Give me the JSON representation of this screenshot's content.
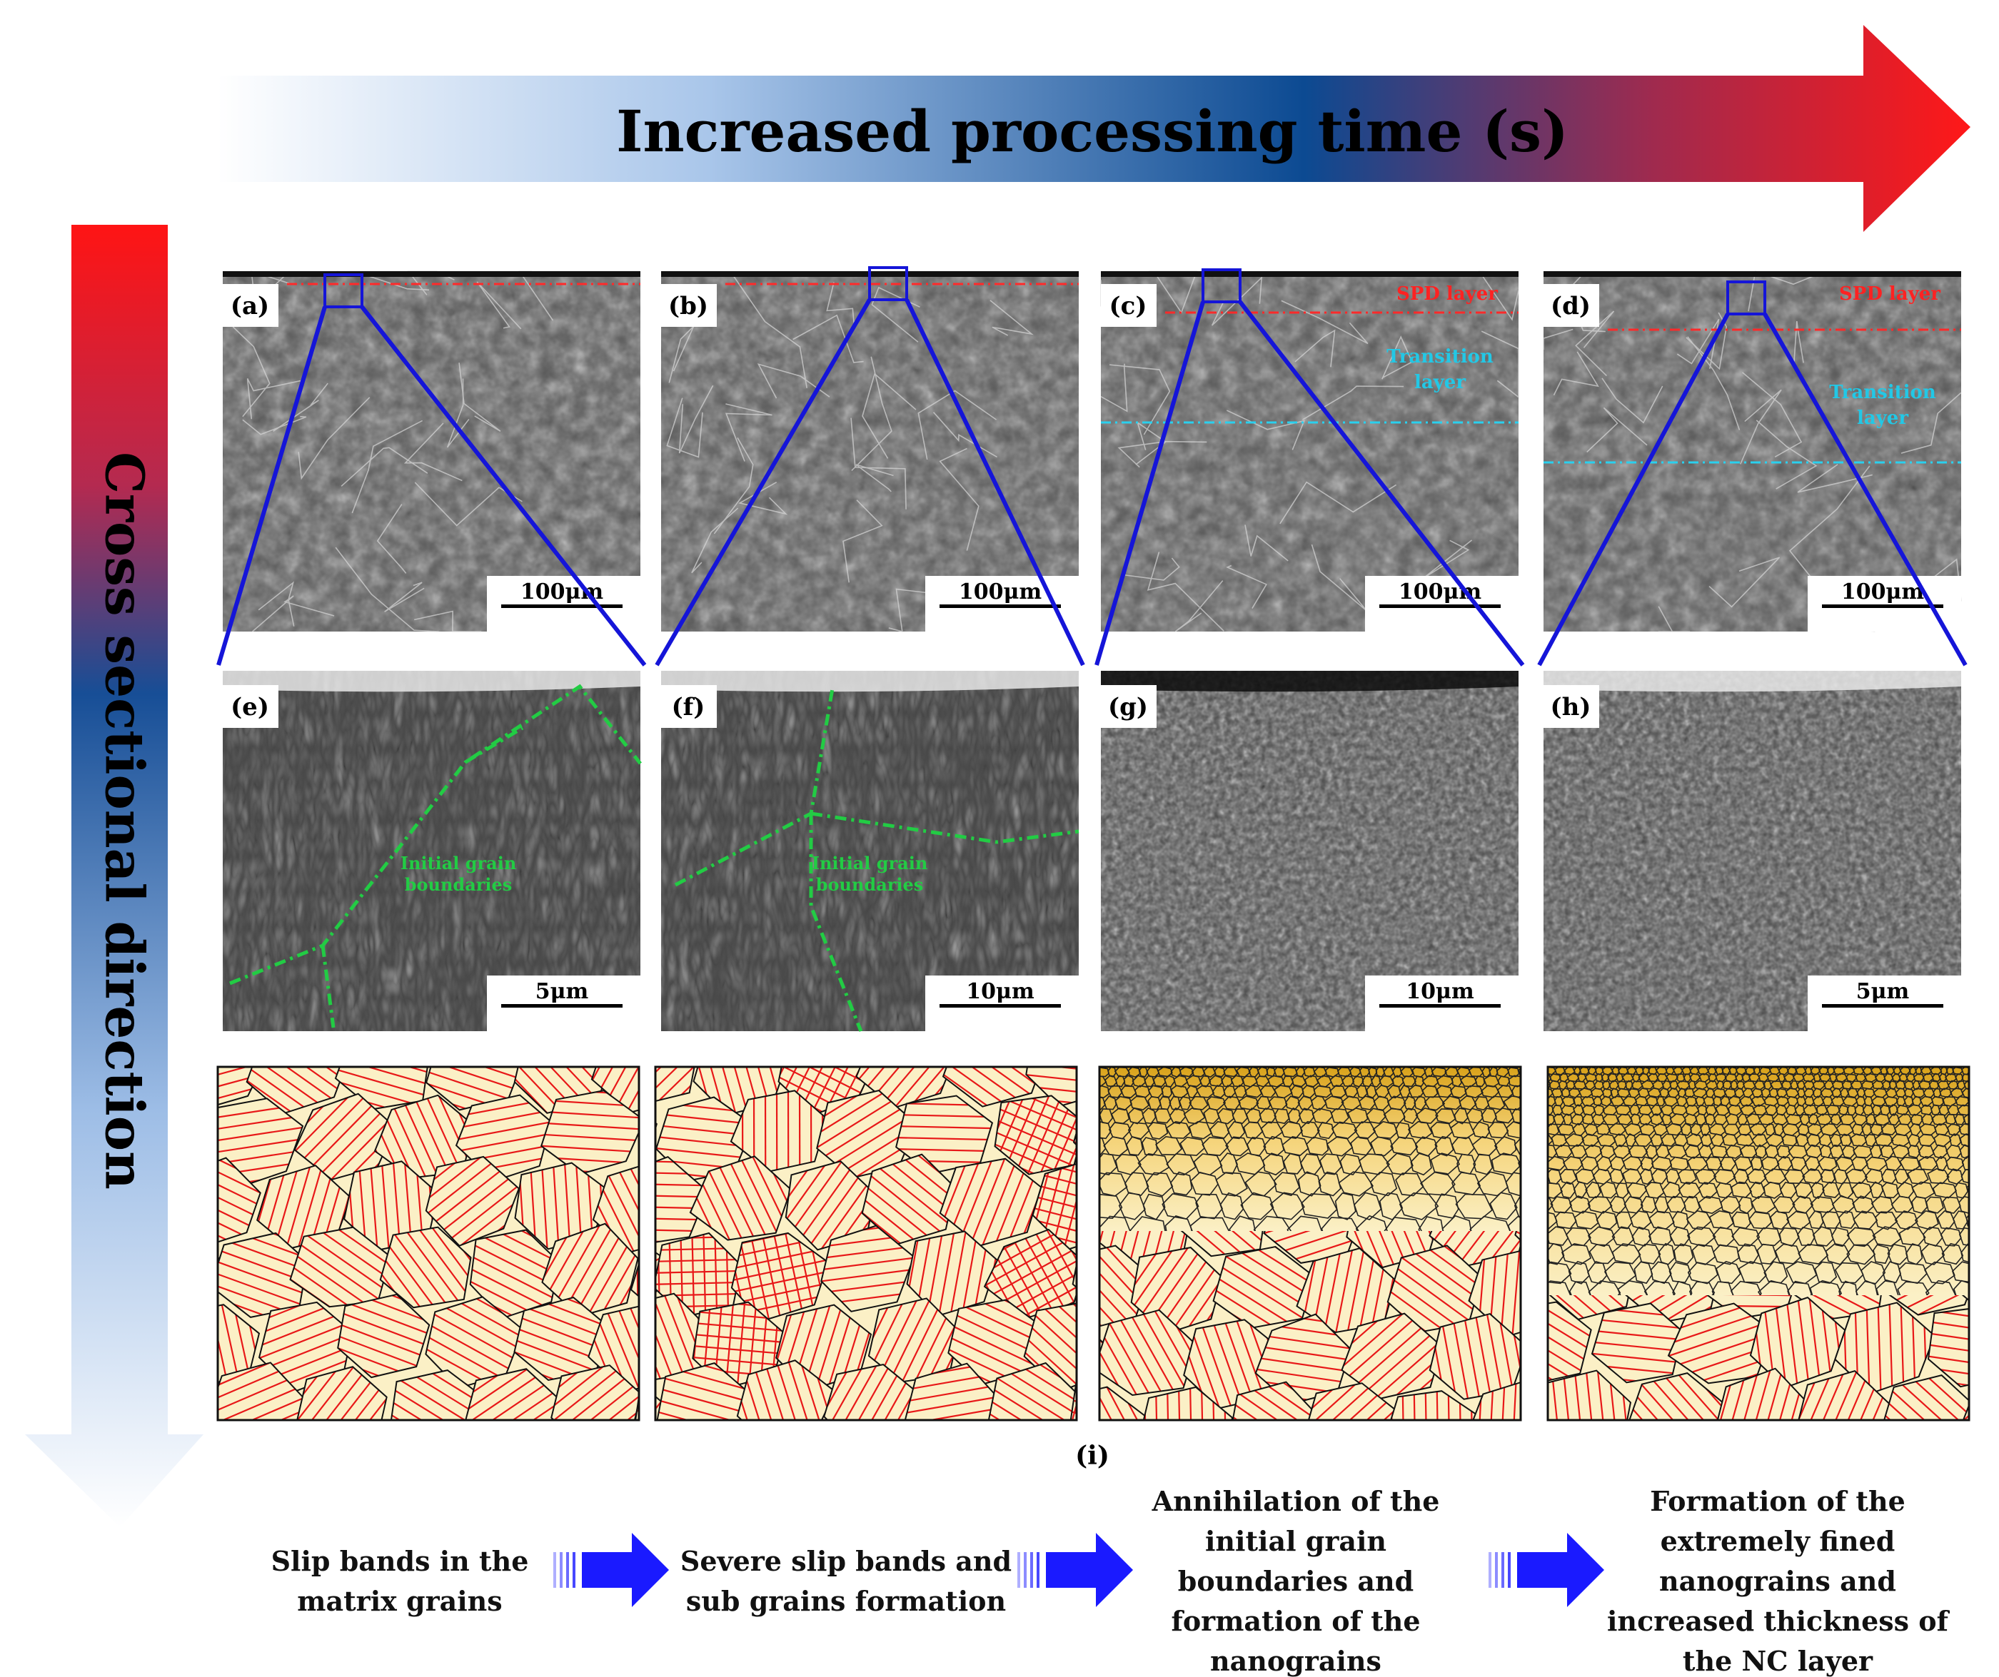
{
  "top_arrow": {
    "label": "Increased processing time (s)"
  },
  "side_arrow": {
    "label": "Cross sectional direction"
  },
  "sem_overview": [
    {
      "label": "(a)",
      "scale_bar": "100μm",
      "layers": []
    },
    {
      "label": "(b)",
      "scale_bar": "100μm",
      "layers": []
    },
    {
      "label": "(c)",
      "scale_bar": "100μm",
      "layers": [
        {
          "label": "SPD layer",
          "color": "#ff2222"
        },
        {
          "label": "Transition layer",
          "color": "#22c8e6"
        }
      ]
    },
    {
      "label": "(d)",
      "scale_bar": "100μm",
      "layers": [
        {
          "label": "SPD layer",
          "color": "#ff2222"
        },
        {
          "label": "Transition layer",
          "color": "#22c8e6"
        }
      ]
    }
  ],
  "sem_detail": [
    {
      "label": "(e)",
      "scale_bar": "5μm",
      "annotation": "Initial grain boundaries"
    },
    {
      "label": "(f)",
      "scale_bar": "10μm",
      "annotation": "Initial grain boundaries"
    },
    {
      "label": "(g)",
      "scale_bar": "10μm",
      "annotation": ""
    },
    {
      "label": "(h)",
      "scale_bar": "5μm",
      "annotation": ""
    }
  ],
  "schematic_label": "(i)",
  "steps": [
    {
      "lines": [
        "Slip bands in the",
        "matrix grains"
      ]
    },
    {
      "lines": [
        "Severe slip bands and",
        "sub grains formation"
      ]
    },
    {
      "lines": [
        "Annihilation of the",
        "initial grain",
        "boundaries and",
        "formation of the",
        "nanograins"
      ]
    },
    {
      "lines": [
        "Formation of the",
        "extremely fined",
        "nanograins and",
        "increased thickness of",
        "the NC layer"
      ]
    }
  ],
  "colors": {
    "zoom_lines": "#1515d8",
    "grain_boundary_annotation": "#22cc44",
    "slip_lines": "#e81818",
    "step_arrow": "#1a1aff",
    "grain_fill": "#fbf0c6",
    "nano_fill_top": "#d9a21a"
  }
}
